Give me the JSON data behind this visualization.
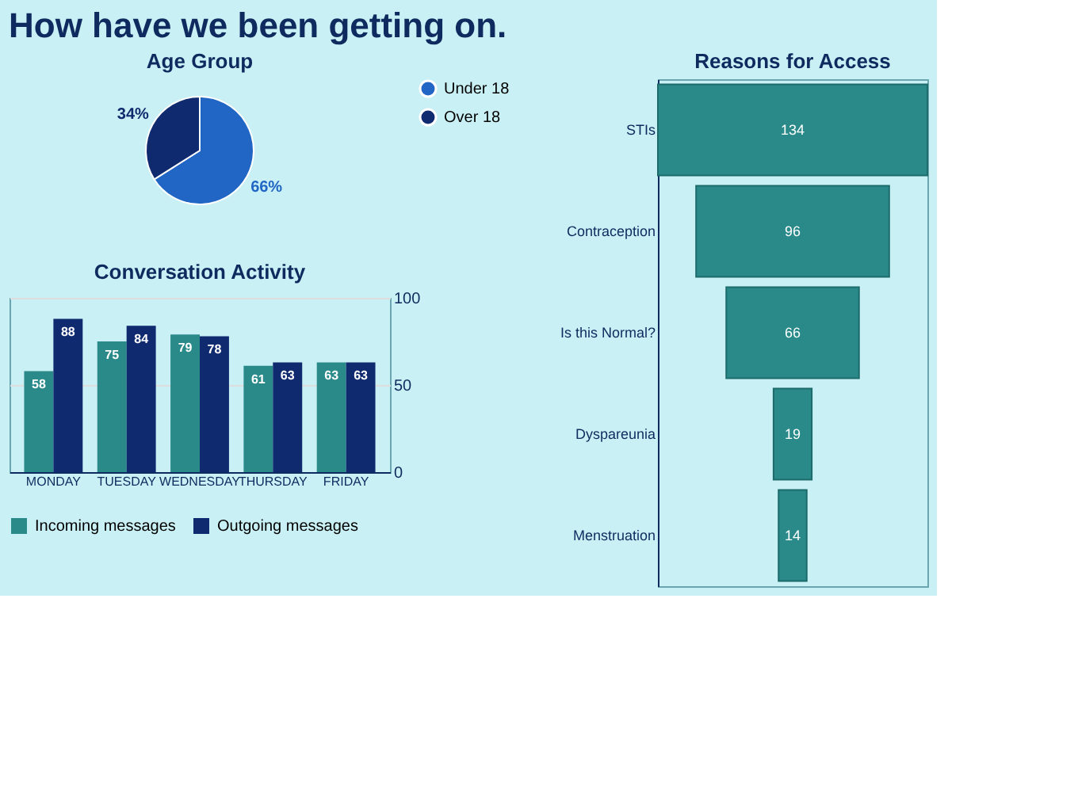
{
  "chart_data": [
    {
      "type": "pie",
      "title": "Age Group",
      "annotations": [
        "How have we been getting on."
      ],
      "categories": [
        "Under 18",
        "Over 18"
      ],
      "values": [
        66,
        34
      ],
      "value_labels": [
        "66%",
        "34%"
      ],
      "colors": [
        "#2166c4",
        "#0f2a6e"
      ],
      "legend": "right"
    },
    {
      "type": "bar",
      "title": "Conversation Activity",
      "categories": [
        "MONDAY",
        "TUESDAY",
        "WEDNESDAY",
        "THURSDAY",
        "FRIDAY"
      ],
      "series": [
        {
          "name": "Incoming messages",
          "color": "#2a8a8a",
          "values": [
            58,
            75,
            79,
            61,
            63
          ]
        },
        {
          "name": "Outgoing messages",
          "color": "#0f2a6e",
          "values": [
            88,
            84,
            78,
            63,
            63
          ]
        }
      ],
      "ylim": [
        0,
        100
      ],
      "yticks": [
        0,
        50,
        100
      ],
      "grid": "y",
      "legend": "bottom",
      "data_labels": true
    },
    {
      "type": "other",
      "title": "Reasons for Access",
      "categories": [
        "STIs",
        "Contraception",
        "Is this Normal?",
        "Dyspareunia",
        "Menstruation"
      ],
      "values": [
        134,
        96,
        66,
        19,
        14
      ],
      "colors": [
        "#2a8a8a",
        "#2a8a8a",
        "#2a8a8a",
        "#2a8a8a",
        "#2a8a8a"
      ],
      "data_labels": true
    }
  ]
}
